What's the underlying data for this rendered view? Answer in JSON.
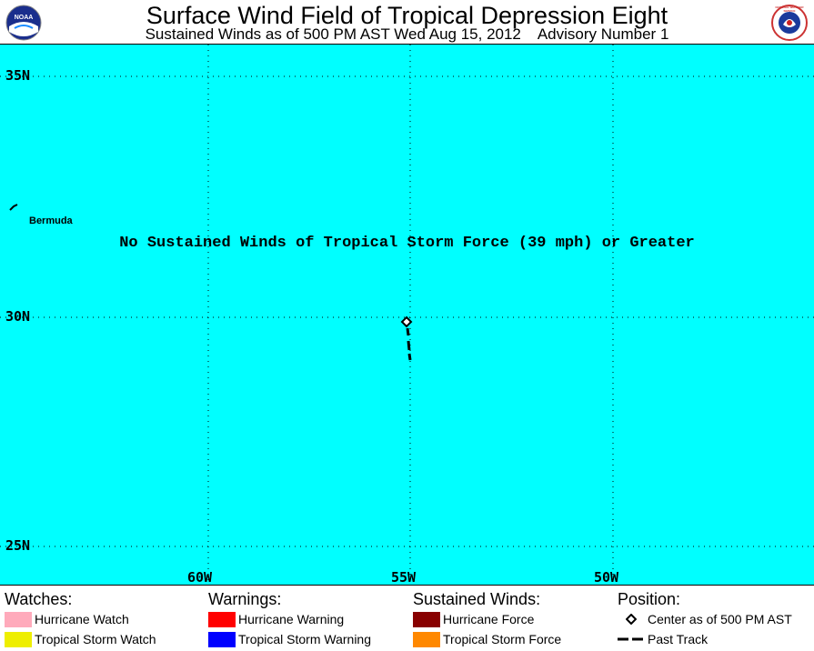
{
  "header": {
    "title": "Surface Wind Field of Tropical Depression Eight",
    "subtitle": "Sustained Winds as of 500 PM AST Wed Aug 15, 2012    Advisory Number 1",
    "left_logo_text": "NOAA",
    "right_logo_text": "NATIONAL WEATHER SERVICE"
  },
  "map": {
    "notice": "No Sustained Winds of Tropical Storm Force (39 mph) or Greater",
    "place_label": "Bermuda",
    "lat_labels": [
      "35N",
      "30N",
      "25N"
    ],
    "lon_labels": [
      "60W",
      "55W",
      "50W"
    ],
    "colors": {
      "ocean": "#00ffff",
      "track": "#000000"
    }
  },
  "legend": {
    "watches": {
      "heading": "Watches:",
      "items": [
        {
          "label": "Hurricane Watch",
          "color": "#ffaabb"
        },
        {
          "label": "Tropical Storm Watch",
          "color": "#eeee00"
        }
      ]
    },
    "warnings": {
      "heading": "Warnings:",
      "items": [
        {
          "label": "Hurricane Warning",
          "color": "#ff0000"
        },
        {
          "label": "Tropical Storm Warning",
          "color": "#0000ff"
        }
      ]
    },
    "winds": {
      "heading": "Sustained Winds:",
      "items": [
        {
          "label": "Hurricane Force",
          "color": "#880000"
        },
        {
          "label": "Tropical Storm Force",
          "color": "#ff8800"
        }
      ]
    },
    "position": {
      "heading": "Position:",
      "items": [
        {
          "label": "Center as of 500 PM AST",
          "icon": "diamond-icon"
        },
        {
          "label": "Past Track",
          "icon": "dash-line-icon"
        }
      ]
    }
  }
}
